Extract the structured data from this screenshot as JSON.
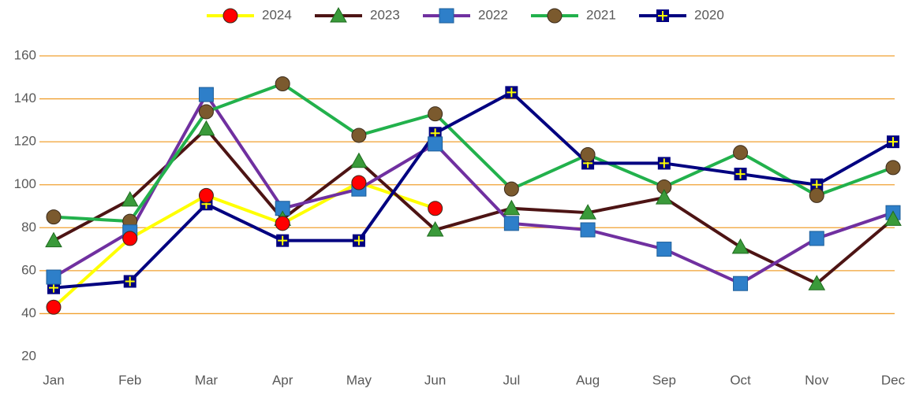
{
  "chart_data": {
    "type": "line",
    "categories": [
      "Jan",
      "Feb",
      "Mar",
      "Apr",
      "May",
      "Jun",
      "Jul",
      "Aug",
      "Sep",
      "Oct",
      "Nov",
      "Dec"
    ],
    "ylim": [
      20,
      160
    ],
    "yticks": [
      20,
      40,
      60,
      80,
      100,
      120,
      140,
      160
    ],
    "grid": true,
    "grid_color": "#f0a030",
    "legend": "top",
    "series": [
      {
        "name": "2024",
        "color": "#ffff00",
        "marker": "circle",
        "marker_color": "#ff0000",
        "values": [
          43,
          75,
          95,
          82,
          101,
          89,
          null,
          null,
          null,
          null,
          null,
          null
        ]
      },
      {
        "name": "2023",
        "color": "#4d1414",
        "marker": "triangle",
        "marker_color": "#3a9a3a",
        "values": [
          74,
          93,
          126,
          84,
          111,
          79,
          89,
          87,
          94,
          71,
          54,
          84
        ]
      },
      {
        "name": "2022",
        "color": "#7030a0",
        "marker": "square",
        "marker_color": "#2e7fc9",
        "values": [
          57,
          78,
          142,
          89,
          98,
          119,
          82,
          79,
          70,
          54,
          75,
          87
        ]
      },
      {
        "name": "2021",
        "color": "#22b14c",
        "marker": "circle",
        "marker_color": "#7b5a2e",
        "values": [
          85,
          83,
          134,
          147,
          123,
          133,
          98,
          114,
          99,
          115,
          95,
          108
        ]
      },
      {
        "name": "2020",
        "color": "#000080",
        "marker": "cross",
        "marker_color": "#000080",
        "values": [
          52,
          55,
          91,
          74,
          74,
          124,
          143,
          110,
          110,
          105,
          100,
          120
        ]
      }
    ]
  }
}
